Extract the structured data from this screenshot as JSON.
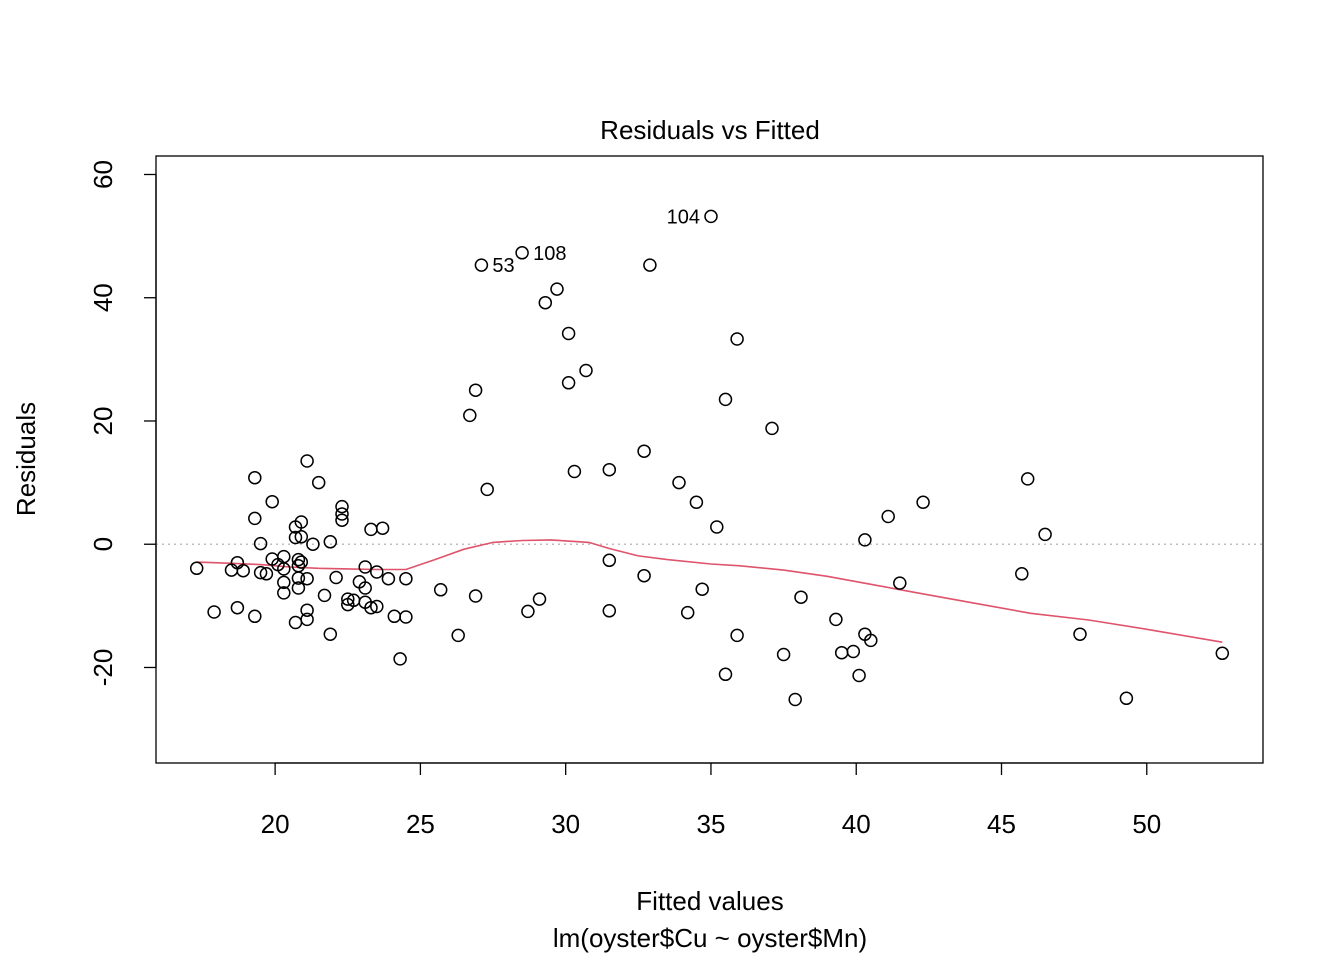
{
  "chart_data": {
    "type": "scatter",
    "title": "Residuals vs Fitted",
    "xlabel": "Fitted values",
    "sublabel": "lm(oyster$Cu ~ oyster$Mn)",
    "ylabel": "Residuals",
    "xlim": [
      15.9,
      54.0
    ],
    "ylim": [
      -35.5,
      63.0
    ],
    "xticks": [
      20,
      25,
      30,
      35,
      40,
      45,
      50
    ],
    "yticks": [
      -20,
      0,
      20,
      40,
      60
    ],
    "reference_line_y": 0,
    "colors": {
      "points": "#000000",
      "smoother": "#DF536B",
      "reference": "#BEBEBE"
    },
    "points": [
      [
        17.3,
        -3.9
      ],
      [
        17.9,
        -11.0
      ],
      [
        18.5,
        -4.2
      ],
      [
        18.7,
        -3.0
      ],
      [
        18.7,
        -10.3
      ],
      [
        18.9,
        -4.3
      ],
      [
        19.3,
        -11.7
      ],
      [
        19.3,
        10.8
      ],
      [
        19.3,
        4.2
      ],
      [
        19.5,
        0.1
      ],
      [
        19.5,
        -4.6
      ],
      [
        19.7,
        -4.8
      ],
      [
        19.9,
        -2.4
      ],
      [
        19.9,
        6.9
      ],
      [
        20.1,
        -3.3
      ],
      [
        20.3,
        -2.0
      ],
      [
        20.3,
        -4.0
      ],
      [
        20.3,
        -6.2
      ],
      [
        20.3,
        -7.9
      ],
      [
        20.7,
        -12.7
      ],
      [
        20.7,
        2.8
      ],
      [
        20.7,
        1.1
      ],
      [
        20.8,
        -2.5
      ],
      [
        20.8,
        -3.5
      ],
      [
        20.8,
        -5.5
      ],
      [
        20.8,
        -7.1
      ],
      [
        20.9,
        3.6
      ],
      [
        20.9,
        1.2
      ],
      [
        20.9,
        -2.9
      ],
      [
        21.1,
        13.5
      ],
      [
        21.1,
        -5.6
      ],
      [
        21.1,
        -10.7
      ],
      [
        21.1,
        -12.2
      ],
      [
        21.3,
        0.0
      ],
      [
        21.5,
        10.0
      ],
      [
        21.7,
        -8.3
      ],
      [
        21.9,
        0.4
      ],
      [
        21.9,
        -14.6
      ],
      [
        22.1,
        -5.4
      ],
      [
        22.3,
        6.1
      ],
      [
        22.3,
        4.9
      ],
      [
        22.3,
        3.9
      ],
      [
        22.5,
        -8.9
      ],
      [
        22.5,
        -9.8
      ],
      [
        22.7,
        -9.1
      ],
      [
        22.9,
        -6.1
      ],
      [
        23.1,
        -3.7
      ],
      [
        23.1,
        -7.1
      ],
      [
        23.1,
        -9.4
      ],
      [
        23.3,
        2.4
      ],
      [
        23.3,
        -10.3
      ],
      [
        23.5,
        -4.5
      ],
      [
        23.5,
        -10.1
      ],
      [
        23.7,
        2.6
      ],
      [
        23.9,
        -5.6
      ],
      [
        24.1,
        -11.7
      ],
      [
        24.3,
        -18.6
      ],
      [
        24.5,
        -11.8
      ],
      [
        24.5,
        -5.6
      ],
      [
        25.7,
        -7.4
      ],
      [
        26.3,
        -14.8
      ],
      [
        26.7,
        20.9
      ],
      [
        26.9,
        25.0
      ],
      [
        26.9,
        -8.4
      ],
      [
        27.1,
        45.3
      ],
      [
        27.3,
        8.9
      ],
      [
        28.5,
        47.3
      ],
      [
        28.7,
        -10.9
      ],
      [
        29.1,
        -8.9
      ],
      [
        29.3,
        39.2
      ],
      [
        29.7,
        41.4
      ],
      [
        30.1,
        34.2
      ],
      [
        30.1,
        26.2
      ],
      [
        30.3,
        11.8
      ],
      [
        30.7,
        28.2
      ],
      [
        31.5,
        12.1
      ],
      [
        31.5,
        -2.6
      ],
      [
        31.5,
        -10.8
      ],
      [
        32.7,
        15.1
      ],
      [
        32.7,
        -5.1
      ],
      [
        32.9,
        45.3
      ],
      [
        33.9,
        10.0
      ],
      [
        34.2,
        -11.1
      ],
      [
        34.5,
        6.8
      ],
      [
        34.7,
        -7.3
      ],
      [
        35.0,
        53.2
      ],
      [
        35.2,
        2.8
      ],
      [
        35.5,
        23.5
      ],
      [
        35.5,
        -21.1
      ],
      [
        35.9,
        33.3
      ],
      [
        35.9,
        -14.8
      ],
      [
        37.1,
        18.8
      ],
      [
        37.5,
        -17.9
      ],
      [
        37.9,
        -25.2
      ],
      [
        38.1,
        -8.6
      ],
      [
        39.3,
        -12.2
      ],
      [
        39.5,
        -17.6
      ],
      [
        39.9,
        -17.4
      ],
      [
        40.1,
        -21.3
      ],
      [
        40.3,
        -14.6
      ],
      [
        40.3,
        0.7
      ],
      [
        40.5,
        -15.6
      ],
      [
        41.1,
        4.5
      ],
      [
        41.5,
        -6.3
      ],
      [
        42.3,
        6.8
      ],
      [
        45.7,
        -4.8
      ],
      [
        45.9,
        10.6
      ],
      [
        46.5,
        1.6
      ],
      [
        47.7,
        -14.6
      ],
      [
        49.3,
        -25.0
      ],
      [
        52.6,
        -17.7
      ]
    ],
    "labeled_points": [
      {
        "label": "53",
        "x": 27.1,
        "y": 45.3,
        "side": "right"
      },
      {
        "label": "108",
        "x": 28.5,
        "y": 47.3,
        "side": "right"
      },
      {
        "label": "104",
        "x": 35.0,
        "y": 53.2,
        "side": "left"
      }
    ],
    "smoother": [
      [
        17.3,
        -2.9
      ],
      [
        18.5,
        -3.1
      ],
      [
        19.5,
        -3.3
      ],
      [
        20.5,
        -3.7
      ],
      [
        21.5,
        -3.9
      ],
      [
        22.5,
        -4.0
      ],
      [
        23.5,
        -4.1
      ],
      [
        24.5,
        -4.1
      ],
      [
        25.5,
        -2.5
      ],
      [
        26.5,
        -0.8
      ],
      [
        27.5,
        0.3
      ],
      [
        28.5,
        0.6
      ],
      [
        29.5,
        0.7
      ],
      [
        30.8,
        0.3
      ],
      [
        31.5,
        -0.7
      ],
      [
        32.5,
        -1.9
      ],
      [
        33.5,
        -2.5
      ],
      [
        35.0,
        -3.2
      ],
      [
        36.0,
        -3.5
      ],
      [
        37.5,
        -4.2
      ],
      [
        39.0,
        -5.2
      ],
      [
        40.5,
        -6.5
      ],
      [
        42.0,
        -7.8
      ],
      [
        44.0,
        -9.5
      ],
      [
        46.0,
        -11.2
      ],
      [
        48.0,
        -12.3
      ],
      [
        50.0,
        -13.8
      ],
      [
        52.6,
        -15.9
      ]
    ]
  }
}
